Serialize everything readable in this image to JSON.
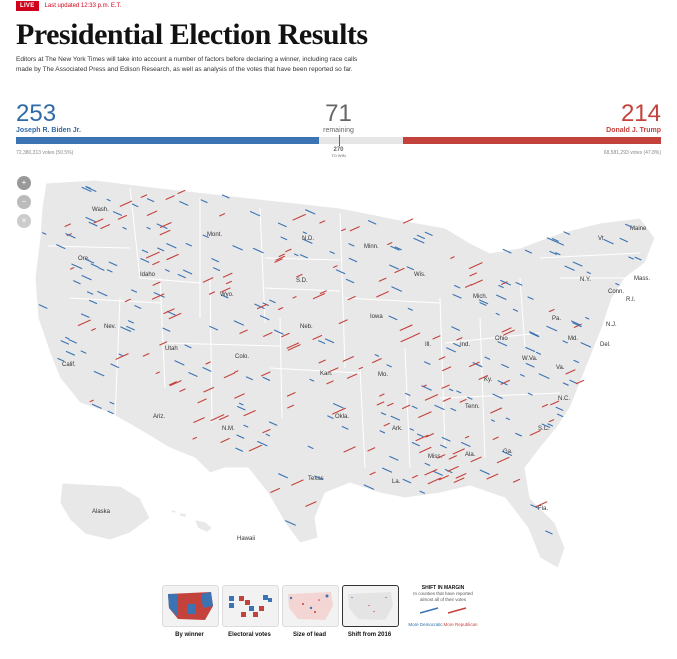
{
  "header": {
    "live_badge": "LIVE",
    "updated": "Last updated 12:33 p.m. E.T.",
    "title": "Presidential Election Results",
    "description": "Editors at The New York Times will take into account a number of factors before declaring a winner, including race calls made by The Associated Press and Edison Research, as well as analysis of the votes that have been reported so far."
  },
  "tally": {
    "biden": {
      "ev": "253",
      "name": "Joseph R. Biden Jr.",
      "votes": "72,380,313 votes (50.5%)",
      "share": 0.47
    },
    "remaining": {
      "ev": "71",
      "label": "remaining"
    },
    "trump": {
      "ev": "214",
      "name": "Donald J. Trump",
      "votes": "68,581,293 votes (47.8%)",
      "share": 0.4
    },
    "to_win_num": "270",
    "to_win_label": "TO WIN"
  },
  "zoom": {
    "zoom_in": "+",
    "zoom_out": "−",
    "reset": "×"
  },
  "states": [
    "Wash.",
    "Ore.",
    "Idaho",
    "Mont.",
    "Wyo.",
    "N.D.",
    "S.D.",
    "Neb.",
    "Nev.",
    "Calif.",
    "Utah",
    "Colo.",
    "Ariz.",
    "N.M.",
    "Kan.",
    "Okla.",
    "Texas",
    "Minn.",
    "Iowa",
    "Mo.",
    "Ark.",
    "La.",
    "Wis.",
    "Ill.",
    "Mich.",
    "Ind.",
    "Ohio",
    "Ky.",
    "Tenn.",
    "Miss.",
    "Ala.",
    "Ga.",
    "Fla.",
    "S.C.",
    "N.C.",
    "Va.",
    "W.Va.",
    "Pa.",
    "N.Y.",
    "Vt.",
    "Maine",
    "Mass.",
    "Conn.",
    "R.I.",
    "N.J.",
    "Md.",
    "Del.",
    "Alaska",
    "Hawaii"
  ],
  "views": [
    {
      "label": "By winner"
    },
    {
      "label": "Electoral votes"
    },
    {
      "label": "Size of lead"
    },
    {
      "label": "Shift from 2016"
    }
  ],
  "active_view": 3,
  "shift_legend": {
    "heading": "SHIFT IN MARGIN",
    "sub": "In counties that have reported almost all of their votes",
    "dem": "More Democratic",
    "rep": "More Republican"
  },
  "colors": {
    "dem": "#3b73b3",
    "rep": "#c4423c",
    "land": "#e8e8e8"
  }
}
